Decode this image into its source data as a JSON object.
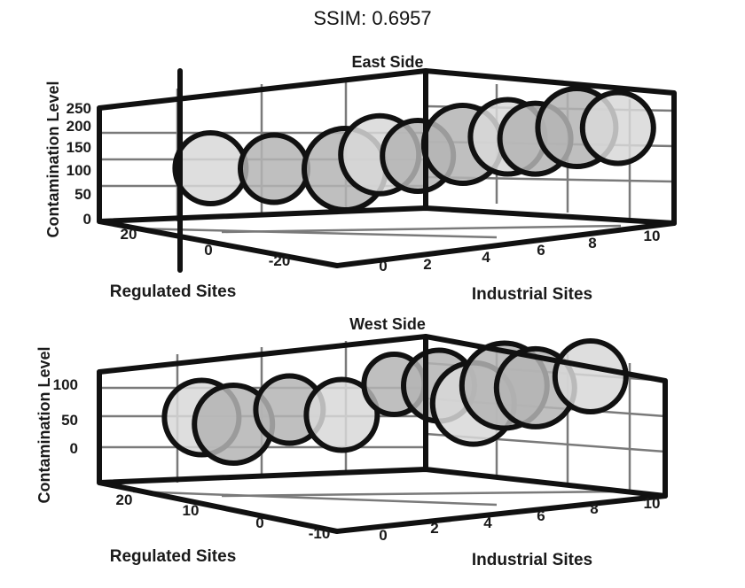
{
  "title": "SSIM: 0.6957",
  "colors": {
    "frame": "#111111",
    "grid": "#7a7a7a",
    "bubble_fill": "#b4b4b4",
    "bubble_fill_light": "#d8d8d8"
  },
  "chart_data": [
    {
      "type": "scatter",
      "subtype": "3d-bubble",
      "title": "East Side",
      "xlabel": "Regulated Sites",
      "ylabel": "Industrial Sites",
      "zlabel": "Contamination Level",
      "x_ticks": [
        "20",
        "0",
        "-20"
      ],
      "y_ticks": [
        "0",
        "2",
        "4",
        "6",
        "8",
        "10"
      ],
      "z_ticks": [
        "0",
        "50",
        "100",
        "150",
        "200",
        "250"
      ],
      "points": [
        {
          "x": 18,
          "y": 0.5,
          "z": 20,
          "size": 40
        },
        {
          "x": 10,
          "y": 1.5,
          "z": 15,
          "size": 38
        },
        {
          "x": 0,
          "y": 2.5,
          "z": 10,
          "size": 46
        },
        {
          "x": -3,
          "y": 3.2,
          "z": 25,
          "size": 44
        },
        {
          "x": -6,
          "y": 4.0,
          "z": 20,
          "size": 40
        },
        {
          "x": -9,
          "y": 5.0,
          "z": 30,
          "size": 44
        },
        {
          "x": -12,
          "y": 6.0,
          "z": 35,
          "size": 42
        },
        {
          "x": -14,
          "y": 6.6,
          "z": 30,
          "size": 40
        },
        {
          "x": -17,
          "y": 7.5,
          "z": 40,
          "size": 44
        },
        {
          "x": -19,
          "y": 8.5,
          "z": 35,
          "size": 40
        }
      ]
    },
    {
      "type": "scatter",
      "subtype": "3d-bubble",
      "title": "West Side",
      "xlabel": "Regulated Sites",
      "ylabel": "Industrial Sites",
      "zlabel": "Contamination Level",
      "x_ticks": [
        "20",
        "10",
        "0",
        "-10"
      ],
      "y_ticks": [
        "0",
        "2",
        "4",
        "6",
        "8",
        "10"
      ],
      "z_ticks": [
        "0",
        "50",
        "100"
      ],
      "points": [
        {
          "x": 18,
          "y": 0.5,
          "z": 30,
          "size": 42
        },
        {
          "x": 14,
          "y": 1.0,
          "z": 20,
          "size": 44
        },
        {
          "x": 8,
          "y": 2.0,
          "z": 35,
          "size": 38
        },
        {
          "x": 3,
          "y": 3.0,
          "z": 25,
          "size": 40
        },
        {
          "x": -2,
          "y": 4.0,
          "z": 60,
          "size": 34
        },
        {
          "x": -5,
          "y": 5.0,
          "z": 55,
          "size": 40
        },
        {
          "x": -7,
          "y": 5.8,
          "z": 30,
          "size": 46
        },
        {
          "x": -9,
          "y": 6.5,
          "z": 50,
          "size": 48
        },
        {
          "x": -11,
          "y": 7.2,
          "z": 45,
          "size": 44
        },
        {
          "x": -14,
          "y": 8.5,
          "z": 55,
          "size": 40
        }
      ]
    }
  ]
}
